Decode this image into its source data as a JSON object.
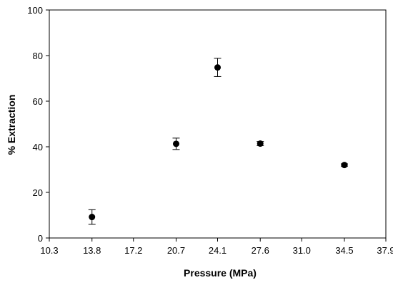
{
  "chart_data": {
    "type": "scatter",
    "xlabel": "Pressure (MPa)",
    "ylabel": "% Extraction",
    "xlim": [
      10.3,
      37.9
    ],
    "ylim": [
      0,
      100
    ],
    "x_ticks": [
      "10.3",
      "13.8",
      "17.2",
      "20.7",
      "24.1",
      "27.6",
      "31.0",
      "34.5",
      "37.9"
    ],
    "y_ticks": [
      "0",
      "20",
      "40",
      "60",
      "80",
      "100"
    ],
    "grid": false,
    "points": [
      {
        "x": 13.8,
        "y": 9.2,
        "err": 3.2
      },
      {
        "x": 20.7,
        "y": 41.3,
        "err": 2.5
      },
      {
        "x": 24.1,
        "y": 74.8,
        "err": 4.0
      },
      {
        "x": 27.6,
        "y": 41.4,
        "err": 0.9
      },
      {
        "x": 34.5,
        "y": 32.0,
        "err": 0.5
      }
    ],
    "marker_color": "#000000"
  }
}
